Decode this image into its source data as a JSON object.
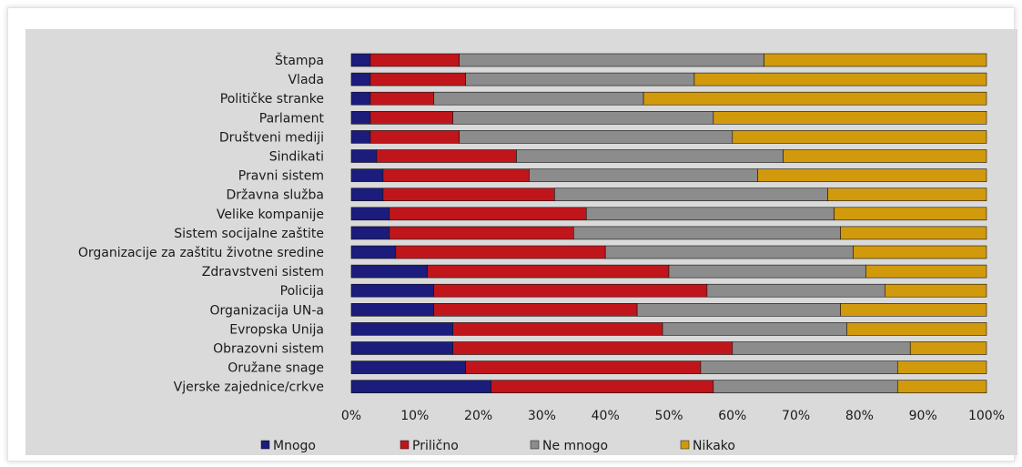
{
  "chart_data": {
    "type": "bar",
    "orientation": "horizontal",
    "stacked": true,
    "title": "",
    "xlabel": "",
    "ylabel": "",
    "xlim": [
      0,
      100
    ],
    "x_ticks": [
      "0%",
      "10%",
      "20%",
      "30%",
      "40%",
      "50%",
      "60%",
      "70%",
      "80%",
      "90%",
      "100%"
    ],
    "categories": [
      "Štampa",
      "Vlada",
      "Političke stranke",
      "Parlament",
      "Društveni mediji",
      "Sindikati",
      "Pravni sistem",
      "Državna služba",
      "Velike kompanije",
      "Sistem socijalne zaštite",
      "Organizacije za zaštitu životne sredine",
      "Zdravstveni sistem",
      "Policija",
      "Organizacija UN-a",
      "Evropska Unija",
      "Obrazovni sistem",
      "Oružane snage",
      "Vjerske zajednice/crkve"
    ],
    "series": [
      {
        "name": "Mnogo",
        "color": "#1c1c7c",
        "values": [
          3,
          3,
          3,
          3,
          3,
          4,
          5,
          5,
          6,
          6,
          7,
          12,
          13,
          13,
          16,
          16,
          18,
          22
        ]
      },
      {
        "name": "Prilično",
        "color": "#c0161b",
        "values": [
          14,
          15,
          10,
          13,
          14,
          22,
          23,
          27,
          31,
          29,
          33,
          38,
          43,
          32,
          33,
          44,
          37,
          35
        ]
      },
      {
        "name": "Ne mnogo",
        "color": "#8c8c8c",
        "values": [
          48,
          36,
          33,
          41,
          43,
          42,
          36,
          43,
          39,
          42,
          39,
          31,
          28,
          32,
          29,
          28,
          31,
          29
        ]
      },
      {
        "name": "Nikako",
        "color": "#d19a0c",
        "values": [
          35,
          46,
          54,
          43,
          40,
          32,
          36,
          25,
          24,
          23,
          21,
          19,
          16,
          23,
          22,
          12,
          14,
          14
        ]
      }
    ],
    "legend_position": "bottom",
    "grid": false
  }
}
